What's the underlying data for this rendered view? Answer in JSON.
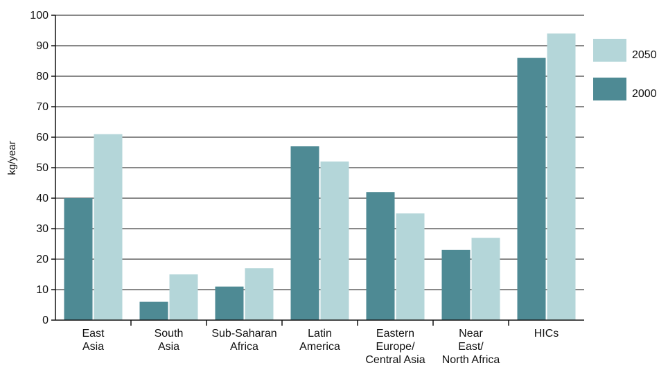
{
  "chart_data": {
    "type": "bar",
    "categories": [
      [
        "East",
        "Asia"
      ],
      [
        "South",
        "Asia"
      ],
      [
        "Sub-Saharan",
        "Africa"
      ],
      [
        "Latin",
        "America"
      ],
      [
        "Eastern",
        "Europe/",
        "Central Asia"
      ],
      [
        "Near",
        "East/",
        "North Africa"
      ],
      [
        "HICs"
      ]
    ],
    "series": [
      {
        "name": "2000",
        "color": "#4e8a94",
        "values": [
          40,
          6,
          11,
          57,
          42,
          23,
          86
        ]
      },
      {
        "name": "2050",
        "color": "#b4d6d9",
        "values": [
          61,
          15,
          17,
          52,
          35,
          27,
          94
        ]
      }
    ],
    "legend_order": [
      "2050",
      "2000"
    ],
    "legend_position": "right",
    "title": "",
    "xlabel": "",
    "ylabel": "kg/year",
    "ylim": [
      0,
      100
    ],
    "yticks": [
      0,
      10,
      20,
      30,
      40,
      50,
      60,
      70,
      80,
      90,
      100
    ],
    "grid": true
  }
}
